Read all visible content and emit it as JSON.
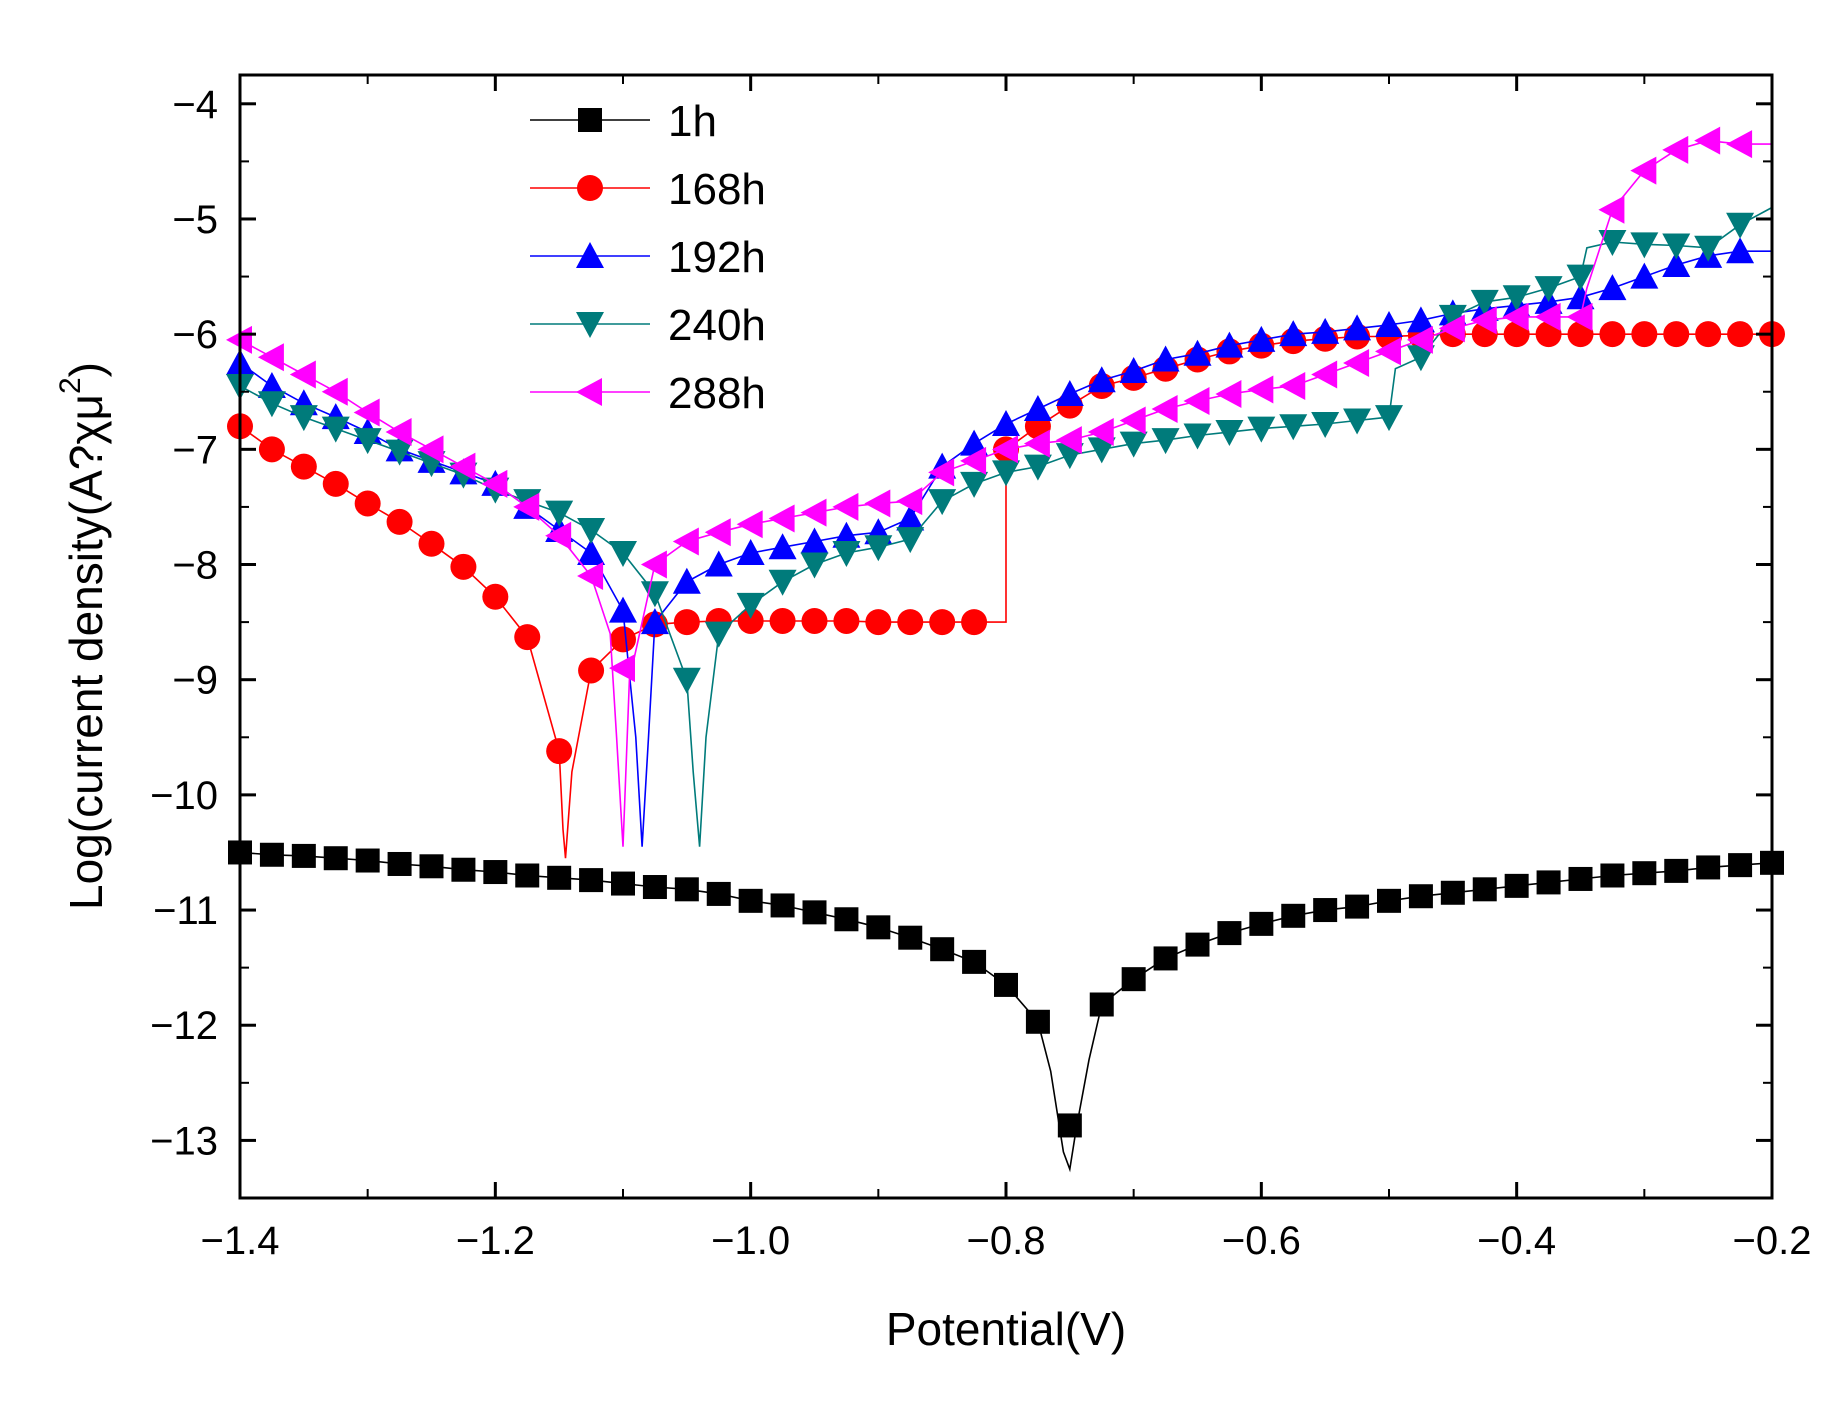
{
  "chart_data": {
    "type": "line",
    "title": "",
    "xlabel": "Potential(V)",
    "ylabel": "Log(current density(A?χμ",
    "ylabel_superscript": "2",
    "ylabel_suffix": ")",
    "xlim": [
      -1.4,
      -0.2
    ],
    "ylim": [
      -13.5,
      -3.75
    ],
    "x_ticks": [
      -1.4,
      -1.2,
      -1.0,
      -0.8,
      -0.6,
      -0.4,
      -0.2
    ],
    "x_tick_labels": [
      "−1.4",
      "−1.2",
      "−1.0",
      "−0.8",
      "−0.6",
      "−0.4",
      "−0.2"
    ],
    "y_ticks": [
      -4,
      -5,
      -6,
      -7,
      -8,
      -9,
      -10,
      -11,
      -12,
      -13
    ],
    "y_tick_labels": [
      "−4",
      "−5",
      "−6",
      "−7",
      "−8",
      "−9",
      "−10",
      "−11",
      "−12",
      "−13"
    ],
    "grid": false,
    "legend_position": "top-left",
    "series": [
      {
        "name": "1h",
        "color": "#000000",
        "marker": "square",
        "x": [
          -1.4,
          -1.375,
          -1.35,
          -1.325,
          -1.3,
          -1.275,
          -1.25,
          -1.225,
          -1.2,
          -1.175,
          -1.15,
          -1.125,
          -1.1,
          -1.075,
          -1.05,
          -1.025,
          -1.0,
          -0.975,
          -0.95,
          -0.925,
          -0.9,
          -0.875,
          -0.85,
          -0.825,
          -0.8,
          -0.775,
          -0.765,
          -0.755,
          -0.75,
          -0.745,
          -0.735,
          -0.725,
          -0.7,
          -0.675,
          -0.65,
          -0.625,
          -0.6,
          -0.575,
          -0.55,
          -0.525,
          -0.5,
          -0.475,
          -0.45,
          -0.425,
          -0.4,
          -0.375,
          -0.35,
          -0.325,
          -0.3,
          -0.275,
          -0.25,
          -0.225,
          -0.2
        ],
        "y": [
          -10.5,
          -10.52,
          -10.53,
          -10.55,
          -10.57,
          -10.6,
          -10.62,
          -10.65,
          -10.67,
          -10.7,
          -10.72,
          -10.74,
          -10.77,
          -10.8,
          -10.82,
          -10.86,
          -10.92,
          -10.96,
          -11.02,
          -11.08,
          -11.15,
          -11.24,
          -11.34,
          -11.45,
          -11.65,
          -11.97,
          -12.4,
          -13.1,
          -13.25,
          -12.9,
          -12.3,
          -11.82,
          -11.6,
          -11.42,
          -11.3,
          -11.2,
          -11.12,
          -11.05,
          -11.0,
          -10.97,
          -10.92,
          -10.88,
          -10.85,
          -10.82,
          -10.79,
          -10.76,
          -10.73,
          -10.7,
          -10.68,
          -10.66,
          -10.63,
          -10.61,
          -10.59
        ],
        "markers_x": [
          -1.4,
          -1.375,
          -1.35,
          -1.325,
          -1.3,
          -1.275,
          -1.25,
          -1.225,
          -1.2,
          -1.175,
          -1.15,
          -1.125,
          -1.1,
          -1.075,
          -1.05,
          -1.025,
          -1.0,
          -0.975,
          -0.95,
          -0.925,
          -0.9,
          -0.875,
          -0.85,
          -0.825,
          -0.8,
          -0.775,
          -0.75,
          -0.725,
          -0.7,
          -0.675,
          -0.65,
          -0.625,
          -0.6,
          -0.575,
          -0.55,
          -0.525,
          -0.5,
          -0.475,
          -0.45,
          -0.425,
          -0.4,
          -0.375,
          -0.35,
          -0.325,
          -0.3,
          -0.275,
          -0.25,
          -0.225,
          -0.2
        ],
        "markers_y": [
          -10.5,
          -10.52,
          -10.53,
          -10.55,
          -10.57,
          -10.6,
          -10.62,
          -10.65,
          -10.67,
          -10.7,
          -10.72,
          -10.74,
          -10.77,
          -10.8,
          -10.82,
          -10.86,
          -10.92,
          -10.96,
          -11.02,
          -11.08,
          -11.15,
          -11.24,
          -11.34,
          -11.45,
          -11.65,
          -11.97,
          -12.87,
          -11.82,
          -11.6,
          -11.42,
          -11.3,
          -11.2,
          -11.12,
          -11.05,
          -11.0,
          -10.97,
          -10.92,
          -10.88,
          -10.85,
          -10.82,
          -10.79,
          -10.76,
          -10.73,
          -10.7,
          -10.68,
          -10.66,
          -10.63,
          -10.61,
          -10.59
        ]
      },
      {
        "name": "168h",
        "color": "#ff0000",
        "marker": "circle",
        "x": [
          -1.4,
          -1.375,
          -1.35,
          -1.325,
          -1.3,
          -1.275,
          -1.25,
          -1.225,
          -1.2,
          -1.175,
          -1.15,
          -1.147,
          -1.145,
          -1.14,
          -1.125,
          -1.1,
          -1.075,
          -1.05,
          -1.025,
          -1.0,
          -0.975,
          -0.95,
          -0.925,
          -0.9,
          -0.875,
          -0.85,
          -0.825,
          -0.8,
          -0.8,
          -0.775,
          -0.75,
          -0.725,
          -0.7,
          -0.675,
          -0.65,
          -0.625,
          -0.6,
          -0.575,
          -0.55,
          -0.525,
          -0.5,
          -0.475,
          -0.45,
          -0.425,
          -0.4,
          -0.375,
          -0.35,
          -0.325,
          -0.3,
          -0.275,
          -0.25,
          -0.225,
          -0.2
        ],
        "y": [
          -6.8,
          -7.0,
          -7.15,
          -7.3,
          -7.47,
          -7.63,
          -7.82,
          -8.02,
          -8.28,
          -8.63,
          -9.62,
          -10.3,
          -10.55,
          -9.8,
          -8.92,
          -8.65,
          -8.52,
          -8.5,
          -8.49,
          -8.49,
          -8.49,
          -8.49,
          -8.49,
          -8.5,
          -8.5,
          -8.5,
          -8.5,
          -8.5,
          -7.0,
          -6.8,
          -6.62,
          -6.45,
          -6.38,
          -6.3,
          -6.22,
          -6.15,
          -6.1,
          -6.06,
          -6.04,
          -6.02,
          -6.02,
          -6.01,
          -6.0,
          -6.0,
          -6.0,
          -6.0,
          -6.0,
          -6.0,
          -6.0,
          -6.0,
          -6.0,
          -6.0,
          -6.0
        ],
        "markers_x": [
          -1.4,
          -1.375,
          -1.35,
          -1.325,
          -1.3,
          -1.275,
          -1.25,
          -1.225,
          -1.2,
          -1.175,
          -1.15,
          -1.125,
          -1.1,
          -1.075,
          -1.05,
          -1.025,
          -1.0,
          -0.975,
          -0.95,
          -0.925,
          -0.9,
          -0.875,
          -0.85,
          -0.825,
          -0.8,
          -0.775,
          -0.75,
          -0.725,
          -0.7,
          -0.675,
          -0.65,
          -0.625,
          -0.6,
          -0.575,
          -0.55,
          -0.525,
          -0.5,
          -0.475,
          -0.45,
          -0.425,
          -0.4,
          -0.375,
          -0.35,
          -0.325,
          -0.3,
          -0.275,
          -0.25,
          -0.225,
          -0.2
        ],
        "markers_y": [
          -6.8,
          -7.0,
          -7.15,
          -7.3,
          -7.47,
          -7.63,
          -7.82,
          -8.02,
          -8.28,
          -8.63,
          -9.62,
          -8.92,
          -8.65,
          -8.52,
          -8.5,
          -8.49,
          -8.49,
          -8.49,
          -8.49,
          -8.49,
          -8.5,
          -8.5,
          -8.5,
          -8.5,
          -7.0,
          -6.8,
          -6.62,
          -6.45,
          -6.38,
          -6.3,
          -6.22,
          -6.15,
          -6.1,
          -6.06,
          -6.04,
          -6.02,
          -6.02,
          -6.01,
          -6.0,
          -6.0,
          -6.0,
          -6.0,
          -6.0,
          -6.0,
          -6.0,
          -6.0,
          -6.0,
          -6.0,
          -6.0
        ]
      },
      {
        "name": "192h",
        "color": "#0000ff",
        "marker": "triangle-up",
        "x": [
          -1.4,
          -1.375,
          -1.35,
          -1.325,
          -1.3,
          -1.275,
          -1.25,
          -1.225,
          -1.2,
          -1.175,
          -1.15,
          -1.125,
          -1.1,
          -1.09,
          -1.085,
          -1.08,
          -1.075,
          -1.05,
          -1.025,
          -1.0,
          -0.975,
          -0.95,
          -0.925,
          -0.9,
          -0.875,
          -0.85,
          -0.825,
          -0.8,
          -0.775,
          -0.75,
          -0.725,
          -0.7,
          -0.675,
          -0.65,
          -0.625,
          -0.6,
          -0.575,
          -0.55,
          -0.525,
          -0.5,
          -0.475,
          -0.45,
          -0.425,
          -0.4,
          -0.375,
          -0.35,
          -0.325,
          -0.3,
          -0.275,
          -0.25,
          -0.225,
          -0.2
        ],
        "y": [
          -6.25,
          -6.45,
          -6.6,
          -6.72,
          -6.85,
          -7.0,
          -7.1,
          -7.2,
          -7.3,
          -7.5,
          -7.7,
          -7.9,
          -8.4,
          -9.5,
          -10.45,
          -9.5,
          -8.5,
          -8.15,
          -8.0,
          -7.9,
          -7.85,
          -7.8,
          -7.75,
          -7.72,
          -7.6,
          -7.15,
          -6.95,
          -6.78,
          -6.65,
          -6.52,
          -6.4,
          -6.32,
          -6.22,
          -6.17,
          -6.1,
          -6.05,
          -6.0,
          -5.98,
          -5.95,
          -5.92,
          -5.88,
          -5.82,
          -5.78,
          -5.75,
          -5.72,
          -5.68,
          -5.6,
          -5.5,
          -5.4,
          -5.32,
          -5.28,
          -5.28
        ],
        "markers_x": [
          -1.4,
          -1.375,
          -1.35,
          -1.325,
          -1.3,
          -1.275,
          -1.25,
          -1.225,
          -1.2,
          -1.175,
          -1.15,
          -1.125,
          -1.1,
          -1.075,
          -1.05,
          -1.025,
          -1.0,
          -0.975,
          -0.95,
          -0.925,
          -0.9,
          -0.875,
          -0.85,
          -0.825,
          -0.8,
          -0.775,
          -0.75,
          -0.725,
          -0.7,
          -0.675,
          -0.65,
          -0.625,
          -0.6,
          -0.575,
          -0.55,
          -0.525,
          -0.5,
          -0.475,
          -0.45,
          -0.425,
          -0.4,
          -0.375,
          -0.35,
          -0.325,
          -0.3,
          -0.275,
          -0.25,
          -0.225
        ],
        "markers_y": [
          -6.25,
          -6.45,
          -6.6,
          -6.72,
          -6.85,
          -7.0,
          -7.1,
          -7.2,
          -7.3,
          -7.5,
          -7.7,
          -7.9,
          -8.4,
          -8.5,
          -8.15,
          -8.0,
          -7.9,
          -7.85,
          -7.8,
          -7.75,
          -7.72,
          -7.6,
          -7.15,
          -6.95,
          -6.78,
          -6.65,
          -6.52,
          -6.4,
          -6.32,
          -6.22,
          -6.17,
          -6.1,
          -6.05,
          -6.0,
          -5.98,
          -5.95,
          -5.92,
          -5.88,
          -5.82,
          -5.78,
          -5.75,
          -5.72,
          -5.68,
          -5.6,
          -5.5,
          -5.4,
          -5.32,
          -5.28
        ]
      },
      {
        "name": "240h",
        "color": "#007b7b",
        "marker": "triangle-down",
        "x": [
          -1.4,
          -1.375,
          -1.35,
          -1.325,
          -1.3,
          -1.275,
          -1.25,
          -1.225,
          -1.2,
          -1.175,
          -1.15,
          -1.125,
          -1.1,
          -1.075,
          -1.05,
          -1.045,
          -1.04,
          -1.035,
          -1.025,
          -1.0,
          -0.975,
          -0.95,
          -0.925,
          -0.9,
          -0.875,
          -0.85,
          -0.825,
          -0.8,
          -0.775,
          -0.75,
          -0.725,
          -0.7,
          -0.675,
          -0.65,
          -0.625,
          -0.6,
          -0.575,
          -0.55,
          -0.525,
          -0.5,
          -0.495,
          -0.475,
          -0.45,
          -0.425,
          -0.4,
          -0.375,
          -0.35,
          -0.345,
          -0.325,
          -0.3,
          -0.275,
          -0.25,
          -0.225,
          -0.2
        ],
        "y": [
          -6.45,
          -6.6,
          -6.72,
          -6.82,
          -6.92,
          -7.02,
          -7.12,
          -7.22,
          -7.35,
          -7.45,
          -7.55,
          -7.7,
          -7.9,
          -8.25,
          -9.0,
          -9.8,
          -10.45,
          -9.5,
          -8.6,
          -8.35,
          -8.15,
          -8.0,
          -7.9,
          -7.85,
          -7.78,
          -7.45,
          -7.3,
          -7.2,
          -7.15,
          -7.05,
          -7.0,
          -6.95,
          -6.92,
          -6.88,
          -6.85,
          -6.82,
          -6.8,
          -6.78,
          -6.75,
          -6.72,
          -6.3,
          -6.2,
          -5.85,
          -5.72,
          -5.68,
          -5.6,
          -5.5,
          -5.25,
          -5.2,
          -5.22,
          -5.23,
          -5.25,
          -5.05,
          -4.9
        ],
        "markers_x": [
          -1.4,
          -1.375,
          -1.35,
          -1.325,
          -1.3,
          -1.275,
          -1.25,
          -1.225,
          -1.2,
          -1.175,
          -1.15,
          -1.125,
          -1.1,
          -1.075,
          -1.05,
          -1.025,
          -1.0,
          -0.975,
          -0.95,
          -0.925,
          -0.9,
          -0.875,
          -0.85,
          -0.825,
          -0.8,
          -0.775,
          -0.75,
          -0.725,
          -0.7,
          -0.675,
          -0.65,
          -0.625,
          -0.6,
          -0.575,
          -0.55,
          -0.525,
          -0.5,
          -0.475,
          -0.45,
          -0.425,
          -0.4,
          -0.375,
          -0.35,
          -0.325,
          -0.3,
          -0.275,
          -0.25,
          -0.225
        ],
        "markers_y": [
          -6.45,
          -6.6,
          -6.72,
          -6.82,
          -6.92,
          -7.02,
          -7.12,
          -7.22,
          -7.35,
          -7.45,
          -7.55,
          -7.7,
          -7.9,
          -8.25,
          -9.0,
          -8.6,
          -8.35,
          -8.15,
          -8.0,
          -7.9,
          -7.85,
          -7.78,
          -7.45,
          -7.3,
          -7.2,
          -7.15,
          -7.05,
          -7.0,
          -6.95,
          -6.92,
          -6.88,
          -6.85,
          -6.82,
          -6.8,
          -6.78,
          -6.75,
          -6.72,
          -6.2,
          -5.85,
          -5.72,
          -5.68,
          -5.6,
          -5.5,
          -5.2,
          -5.22,
          -5.23,
          -5.25,
          -5.05
        ]
      },
      {
        "name": "288h",
        "color": "#ff00ff",
        "marker": "triangle-left",
        "x": [
          -1.4,
          -1.375,
          -1.35,
          -1.325,
          -1.3,
          -1.275,
          -1.25,
          -1.225,
          -1.2,
          -1.175,
          -1.15,
          -1.125,
          -1.11,
          -1.105,
          -1.1,
          -1.095,
          -1.075,
          -1.05,
          -1.025,
          -1.0,
          -0.975,
          -0.95,
          -0.925,
          -0.9,
          -0.875,
          -0.85,
          -0.825,
          -0.8,
          -0.775,
          -0.75,
          -0.725,
          -0.7,
          -0.675,
          -0.65,
          -0.625,
          -0.6,
          -0.575,
          -0.55,
          -0.525,
          -0.5,
          -0.475,
          -0.45,
          -0.425,
          -0.4,
          -0.375,
          -0.35,
          -0.345,
          -0.325,
          -0.3,
          -0.275,
          -0.25,
          -0.225,
          -0.2
        ],
        "y": [
          -6.05,
          -6.2,
          -6.35,
          -6.5,
          -6.68,
          -6.85,
          -7.0,
          -7.15,
          -7.3,
          -7.5,
          -7.75,
          -8.1,
          -8.6,
          -9.5,
          -10.45,
          -9.0,
          -8.0,
          -7.8,
          -7.72,
          -7.65,
          -7.6,
          -7.55,
          -7.5,
          -7.47,
          -7.45,
          -7.2,
          -7.1,
          -7.0,
          -6.95,
          -6.92,
          -6.85,
          -6.75,
          -6.65,
          -6.58,
          -6.52,
          -6.48,
          -6.45,
          -6.35,
          -6.25,
          -6.15,
          -6.05,
          -5.95,
          -5.88,
          -5.85,
          -5.85,
          -5.85,
          -5.6,
          -4.92,
          -4.58,
          -4.4,
          -4.32,
          -4.35,
          -4.35
        ],
        "markers_x": [
          -1.4,
          -1.375,
          -1.35,
          -1.325,
          -1.3,
          -1.275,
          -1.25,
          -1.225,
          -1.2,
          -1.175,
          -1.15,
          -1.125,
          -1.1,
          -1.075,
          -1.05,
          -1.025,
          -1.0,
          -0.975,
          -0.95,
          -0.925,
          -0.9,
          -0.875,
          -0.85,
          -0.825,
          -0.8,
          -0.775,
          -0.75,
          -0.725,
          -0.7,
          -0.675,
          -0.65,
          -0.625,
          -0.6,
          -0.575,
          -0.55,
          -0.525,
          -0.5,
          -0.475,
          -0.45,
          -0.425,
          -0.4,
          -0.375,
          -0.35,
          -0.325,
          -0.3,
          -0.275,
          -0.25,
          -0.225
        ],
        "markers_y": [
          -6.05,
          -6.2,
          -6.35,
          -6.5,
          -6.68,
          -6.85,
          -7.0,
          -7.15,
          -7.3,
          -7.5,
          -7.75,
          -8.1,
          -8.9,
          -8.0,
          -7.8,
          -7.72,
          -7.65,
          -7.6,
          -7.55,
          -7.5,
          -7.47,
          -7.45,
          -7.2,
          -7.1,
          -7.0,
          -6.95,
          -6.92,
          -6.85,
          -6.75,
          -6.65,
          -6.58,
          -6.52,
          -6.48,
          -6.45,
          -6.35,
          -6.25,
          -6.15,
          -6.05,
          -5.95,
          -5.88,
          -5.85,
          -5.85,
          -5.85,
          -4.92,
          -4.58,
          -4.4,
          -4.32,
          -4.35
        ]
      }
    ]
  }
}
